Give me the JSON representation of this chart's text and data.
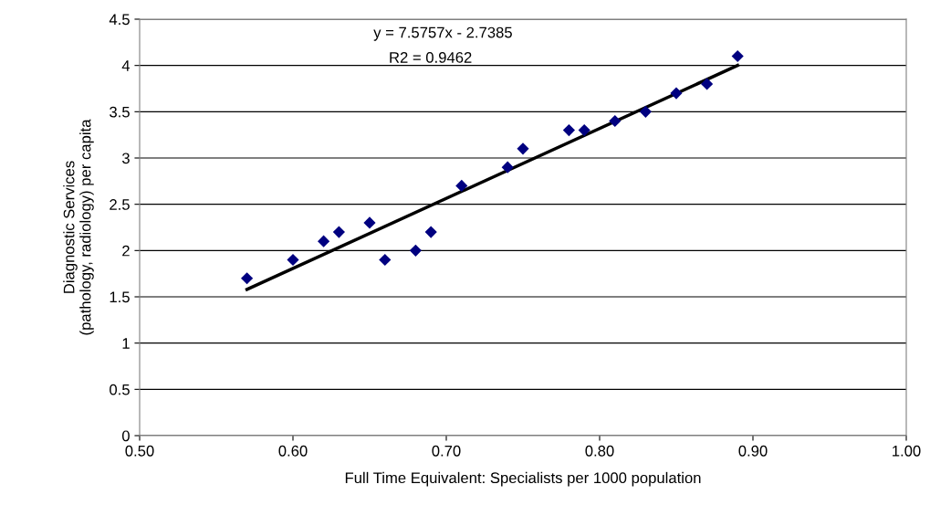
{
  "chart_data": {
    "type": "scatter",
    "xlabel": "Full Time Equivalent: Specialists per 1000 population",
    "ylabel": "Diagnostic Services\n(pathology, radiology) per capita",
    "annotations": [
      "y = 7.5757x - 2.7385",
      "R2 = 0.9462"
    ],
    "series": [
      {
        "color": "#000080",
        "marker": "diamond",
        "x": [
          0.57,
          0.6,
          0.62,
          0.63,
          0.65,
          0.66,
          0.68,
          0.69,
          0.71,
          0.74,
          0.75,
          0.78,
          0.79,
          0.81,
          0.83,
          0.85,
          0.87,
          0.89
        ],
        "values": [
          1.7,
          1.9,
          2.1,
          2.2,
          2.3,
          1.9,
          2.0,
          2.2,
          2.7,
          2.9,
          3.1,
          3.3,
          3.3,
          3.4,
          3.5,
          3.7,
          3.8,
          4.1
        ]
      },
      {
        "type": "line",
        "color": "#000000",
        "marker": "none",
        "line_style": "solid",
        "x": [
          0.57,
          0.89
        ],
        "values": [
          1.58,
          4.0
        ]
      }
    ],
    "xlim": [
      0.5,
      1.0
    ],
    "xticks": [
      {
        "value": 0.5,
        "label": "0.50"
      },
      {
        "value": 0.6,
        "label": "0.60"
      },
      {
        "value": 0.7,
        "label": "0.70"
      },
      {
        "value": 0.8,
        "label": "0.80"
      },
      {
        "value": 0.9,
        "label": "0.90"
      },
      {
        "value": 1.0,
        "label": "1.00"
      }
    ],
    "ylim": [
      0,
      4.5
    ],
    "yticks": [
      0,
      0.5,
      1,
      1.5,
      2,
      2.5,
      3,
      3.5,
      4,
      4.5
    ],
    "grid": "y"
  }
}
